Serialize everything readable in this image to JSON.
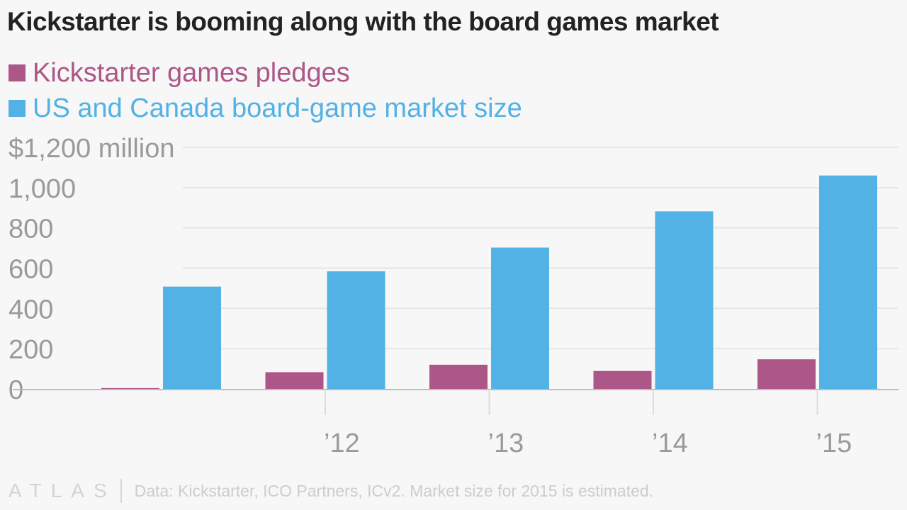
{
  "title": "Kickstarter is booming along with the board games market",
  "chart_data": {
    "type": "bar",
    "categories": [
      "",
      "’12",
      "’13",
      "’14",
      "’15"
    ],
    "series": [
      {
        "name": "Kickstarter games pledges",
        "color": "#ad5688",
        "values": [
          4,
          83,
          120,
          89,
          147
        ]
      },
      {
        "name": "US and Canada board-game market size",
        "color": "#53b2e5",
        "values": [
          508,
          584,
          702,
          882,
          1060
        ]
      }
    ],
    "yticks": [
      {
        "value": 0,
        "label": "0"
      },
      {
        "value": 200,
        "label": "200"
      },
      {
        "value": 400,
        "label": "400"
      },
      {
        "value": 600,
        "label": "600"
      },
      {
        "value": 800,
        "label": "800"
      },
      {
        "value": 1000,
        "label": "1,000"
      },
      {
        "value": 1200,
        "label": "$1,200 million"
      }
    ],
    "ylim": [
      0,
      1200
    ],
    "grid": true,
    "legend_position": "top-left"
  },
  "footer": {
    "logo": "ATLAS",
    "source": "Data: Kickstarter, ICO Partners, ICv2. Market size for 2015 is estimated."
  }
}
